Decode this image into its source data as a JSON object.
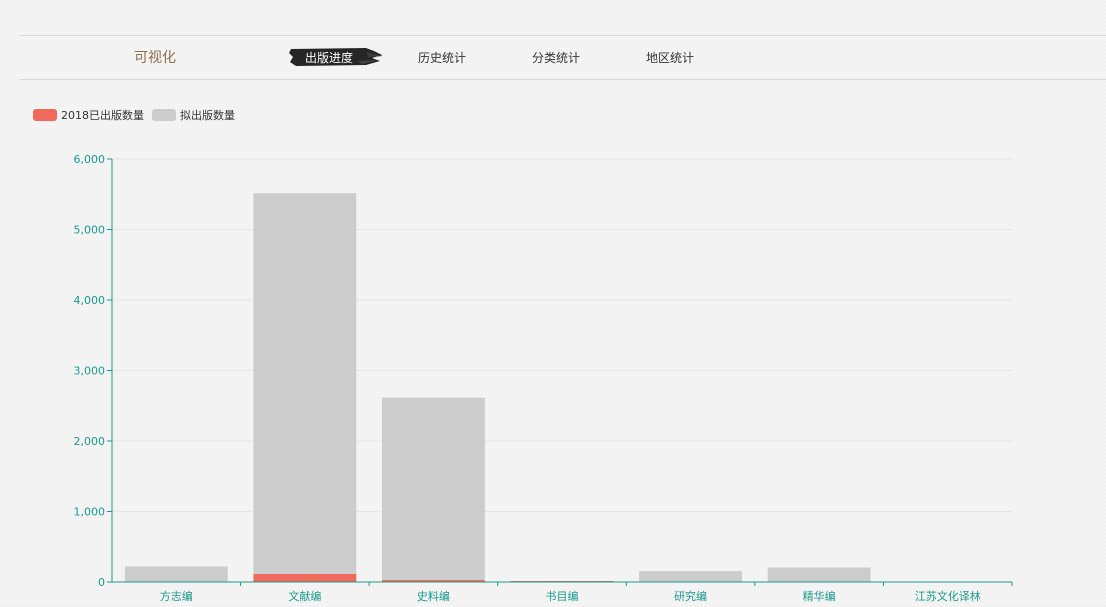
{
  "header": {
    "brand": "可视化",
    "tabs": [
      {
        "label": "出版进度",
        "active": true
      },
      {
        "label": "历史统计",
        "active": false
      },
      {
        "label": "分类统计",
        "active": false
      },
      {
        "label": "地区统计",
        "active": false
      }
    ]
  },
  "colors": {
    "published": "#f06a5c",
    "planned": "#cccccc",
    "axis": "#1a9a8c",
    "grid": "#e6e6e6",
    "brand": "#8b6f47"
  },
  "chart_data": {
    "type": "bar",
    "stacked": true,
    "title": "",
    "xlabel": "",
    "ylabel": "",
    "categories": [
      "方志编",
      "文献编",
      "史料编",
      "书目编",
      "研究编",
      "精华编",
      "江苏文化译林"
    ],
    "series": [
      {
        "name": "2018已出版数量",
        "color": "#f06a5c",
        "values": [
          0,
          115,
          30,
          5,
          0,
          0,
          0
        ]
      },
      {
        "name": "拟出版数量",
        "color": "#cccccc",
        "values": [
          220,
          5400,
          2585,
          0,
          155,
          205,
          0
        ]
      }
    ],
    "ylim": [
      0,
      6000
    ],
    "yticks": [
      0,
      1000,
      2000,
      3000,
      4000,
      5000,
      6000
    ],
    "ytick_labels": [
      "0",
      "1,000",
      "2,000",
      "3,000",
      "4,000",
      "5,000",
      "6,000"
    ],
    "grid": true,
    "legend_position": "top-left"
  }
}
